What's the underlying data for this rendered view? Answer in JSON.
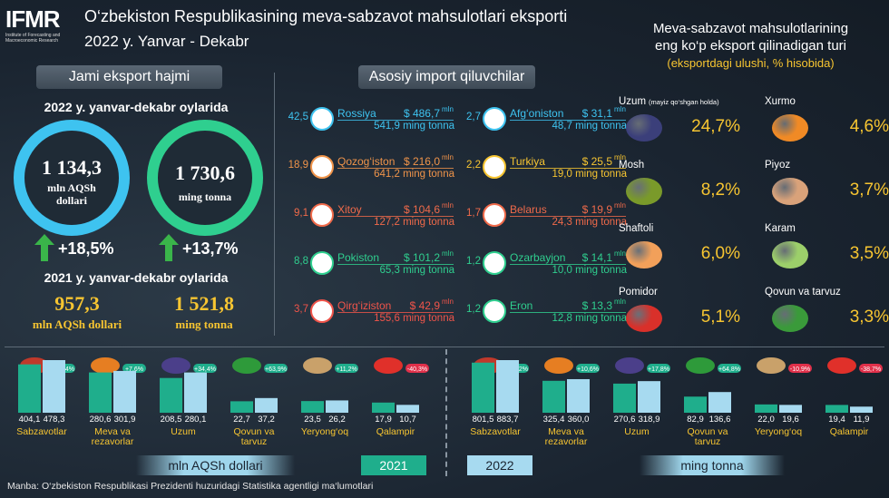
{
  "header": {
    "logo_text": "IFMR",
    "logo_sub": "Institute of Forecasting and Macroeconomic Research",
    "title_line1": "O‘zbekiston Respublikasining meva-sabzavot mahsulotlari eksporti",
    "title_line2": "2022 y. Yanvar - Dekabr"
  },
  "left": {
    "section_title": "Jami eksport hajmi",
    "period2022": "2022 y. yanvar-dekabr oylarida",
    "value_usd": "1 134,3",
    "unit_usd": "mln AQSh dollari",
    "value_ton": "1 730,6",
    "unit_ton": "ming tonna",
    "growth_usd": "+18,5%",
    "growth_ton": "+13,7%",
    "period2021": "2021 y. yanvar-dekabr oylarida",
    "prev_usd": "957,3",
    "prev_usd_unit": "mln AQSh dollari",
    "prev_ton": "1 521,8",
    "prev_ton_unit": "ming tonna"
  },
  "middle": {
    "section_title": "Asosiy import qiluvchilar",
    "mln": "mln",
    "countries_left": [
      {
        "share": "42,5",
        "name": "Rossiya",
        "usd": "$ 486,7",
        "ton": "541,9 ming tonna",
        "color": "#3ec3f0"
      },
      {
        "share": "18,9",
        "name": "Qozog‘iston",
        "usd": "$ 216,0",
        "ton": "641,2 ming tonna",
        "color": "#f0944a"
      },
      {
        "share": "9,1",
        "name": "Xitoy",
        "usd": "$ 104,6",
        "ton": "127,2 ming tonna",
        "color": "#f06a4a"
      },
      {
        "share": "8,8",
        "name": "Pokiston",
        "usd": "$ 101,2",
        "ton": "65,3 ming tonna",
        "color": "#2fcf8f"
      },
      {
        "share": "3,7",
        "name": "Qirg‘iziston",
        "usd": "$ 42,9",
        "ton": "155,6 ming tonna",
        "color": "#f0544a"
      }
    ],
    "countries_right": [
      {
        "share": "2,7",
        "name": "Afg‘oniston",
        "usd": "$ 31,1",
        "ton": "48,7 ming tonna",
        "color": "#3ec3f0"
      },
      {
        "share": "2,2",
        "name": "Turkiya",
        "usd": "$ 25,5",
        "ton": "19,0 ming tonna",
        "color": "#f7c531"
      },
      {
        "share": "1,7",
        "name": "Belarus",
        "usd": "$ 19,9",
        "ton": "24,3 ming tonna",
        "color": "#f06a4a"
      },
      {
        "share": "1,2",
        "name": "Ozarbayjon",
        "usd": "$ 14,1",
        "ton": "10,0 ming tonna",
        "color": "#2fcf8f"
      },
      {
        "share": "1,2",
        "name": "Eron",
        "usd": "$ 13,3",
        "ton": "12,8 ming tonna",
        "color": "#2fcf8f"
      }
    ]
  },
  "right": {
    "title_line1": "Meva-sabzavot mahsulotlarining",
    "title_line2": "eng ko‘p eksport qilinadigan turi",
    "subtitle": "(eksportdagi ulushi, % hisobida)",
    "products": [
      {
        "name": "Uzum",
        "note": "(mayiz qo‘shgan holda)",
        "pct": "24,7%",
        "icon": "grapes-icon"
      },
      {
        "name": "Xurmo",
        "note": "",
        "pct": "4,6%",
        "icon": "persimmon-icon"
      },
      {
        "name": "Mosh",
        "note": "",
        "pct": "8,2%",
        "icon": "mung-bean-icon"
      },
      {
        "name": "Piyoz",
        "note": "",
        "pct": "3,7%",
        "icon": "onion-icon"
      },
      {
        "name": "Shaftoli",
        "note": "",
        "pct": "6,0%",
        "icon": "peach-icon"
      },
      {
        "name": "Karam",
        "note": "",
        "pct": "3,5%",
        "icon": "cabbage-icon"
      },
      {
        "name": "Pomidor",
        "note": "",
        "pct": "5,1%",
        "icon": "tomato-icon"
      },
      {
        "name": "Qovun va tarvuz",
        "note": "",
        "pct": "3,3%",
        "icon": "melon-icon"
      }
    ]
  },
  "bottom": {
    "unit_left": "mln AQSh dollari",
    "unit_right": "ming tonna",
    "year2021": "2021",
    "year2022": "2022",
    "source": "Manba: O‘zbekiston Respublikasi Prezidenti huzuridagi Statistika agentligi ma‘lumotlari"
  },
  "chart_data": [
    {
      "type": "bar",
      "unit": "mln AQSh dollari",
      "categories": [
        "Sabzavotlar",
        "Meva va rezavorlar",
        "Uzum",
        "Qovun va tarvuz",
        "Yeryong‘oq",
        "Qalampir"
      ],
      "series": [
        {
          "name": "2021",
          "values": [
            404.1,
            280.6,
            208.5,
            22.7,
            23.5,
            17.9
          ],
          "labels": [
            "404,1",
            "280,6",
            "208,5",
            "22,7",
            "23,5",
            "17,9"
          ],
          "color": "#1fae8c"
        },
        {
          "name": "2022",
          "values": [
            478.3,
            301.9,
            280.1,
            37.2,
            26.2,
            10.7
          ],
          "labels": [
            "478,3",
            "301,9",
            "280,1",
            "37,2",
            "26,2",
            "10,7"
          ],
          "color": "#a7daf0"
        }
      ],
      "growth": [
        "+18,4%",
        "+7,6%",
        "+34,4%",
        "+63,9%",
        "+11,2%",
        "-40,3%"
      ]
    },
    {
      "type": "bar",
      "unit": "ming tonna",
      "categories": [
        "Sabzavotlar",
        "Meva va rezavorlar",
        "Uzum",
        "Qovun va tarvuz",
        "Yeryong‘oq",
        "Qalampir"
      ],
      "series": [
        {
          "name": "2021",
          "values": [
            801.5,
            325.4,
            270.6,
            82.9,
            22.0,
            19.4
          ],
          "labels": [
            "801,5",
            "325,4",
            "270,6",
            "82,9",
            "22,0",
            "19,4"
          ],
          "color": "#1fae8c"
        },
        {
          "name": "2022",
          "values": [
            883.7,
            360.0,
            318.9,
            136.6,
            19.6,
            11.9
          ],
          "labels": [
            "883,7",
            "360,0",
            "318,9",
            "136,6",
            "19,6",
            "11,9"
          ],
          "color": "#a7daf0"
        }
      ],
      "growth": [
        "+10,2%",
        "+10,6%",
        "+17,8%",
        "+64,8%",
        "-10,9%",
        "-38,7%"
      ]
    }
  ]
}
